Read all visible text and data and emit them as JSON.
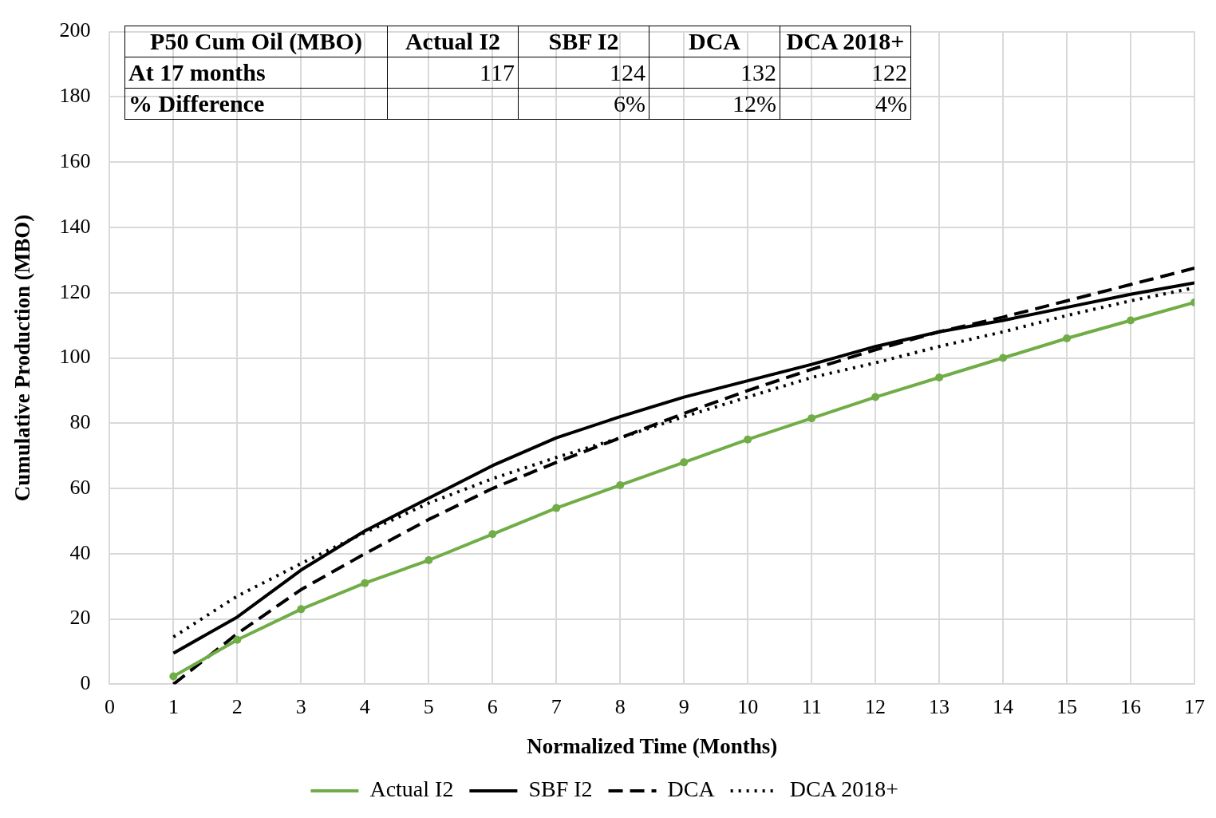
{
  "chart_data": {
    "type": "line",
    "xlabel": "Normalized Time (Months)",
    "ylabel": "Cumulative Production (MBO)",
    "x": [
      1,
      2,
      3,
      4,
      5,
      6,
      7,
      8,
      9,
      10,
      11,
      12,
      13,
      14,
      15,
      16,
      17
    ],
    "series": [
      {
        "name": "Actual I2",
        "color": "#70ad47",
        "marker": "circle",
        "line_style": "solid",
        "values": [
          2.4,
          13.6,
          23,
          31,
          38,
          46,
          54,
          61,
          68,
          75,
          81.5,
          88,
          94,
          100,
          106,
          111.5,
          117
        ]
      },
      {
        "name": "SBF I2",
        "color": "#000000",
        "marker": "none",
        "line_style": "solid",
        "values": [
          9.5,
          20.6,
          35,
          47,
          57,
          67,
          75.5,
          82,
          88,
          93,
          98,
          103.5,
          108,
          111.5,
          115.5,
          119.5,
          123
        ]
      },
      {
        "name": "DCA",
        "color": "#000000",
        "marker": "none",
        "line_style": "dashed",
        "values": [
          0,
          15.5,
          29,
          40,
          50.5,
          60,
          68,
          75.5,
          83,
          90,
          96.5,
          102.5,
          108,
          112.5,
          117.5,
          122.5,
          127.5
        ]
      },
      {
        "name": "DCA 2018+",
        "color": "#000000",
        "marker": "none",
        "line_style": "dotted",
        "values": [
          14.5,
          27,
          37,
          46.5,
          55.5,
          63,
          69.5,
          75.5,
          82,
          88,
          94,
          98.5,
          103.5,
          108,
          113,
          117.5,
          121.5
        ]
      }
    ],
    "xlim": [
      0,
      17
    ],
    "xticks": [
      0,
      1,
      2,
      3,
      4,
      5,
      6,
      7,
      8,
      9,
      10,
      11,
      12,
      13,
      14,
      15,
      16,
      17
    ],
    "ylim": [
      0,
      200
    ],
    "yticks": [
      0,
      20,
      40,
      60,
      80,
      100,
      120,
      140,
      160,
      180,
      200
    ],
    "grid": true,
    "legend": "bottom",
    "annotations": [
      "P50 Cum Oil (MBO)",
      "Actual I2",
      "SBF I2",
      "DCA",
      "DCA 2018+",
      "At 17 months",
      "117",
      "124",
      "132",
      "122",
      "% Difference",
      "6%",
      "12%",
      "4%"
    ]
  }
}
